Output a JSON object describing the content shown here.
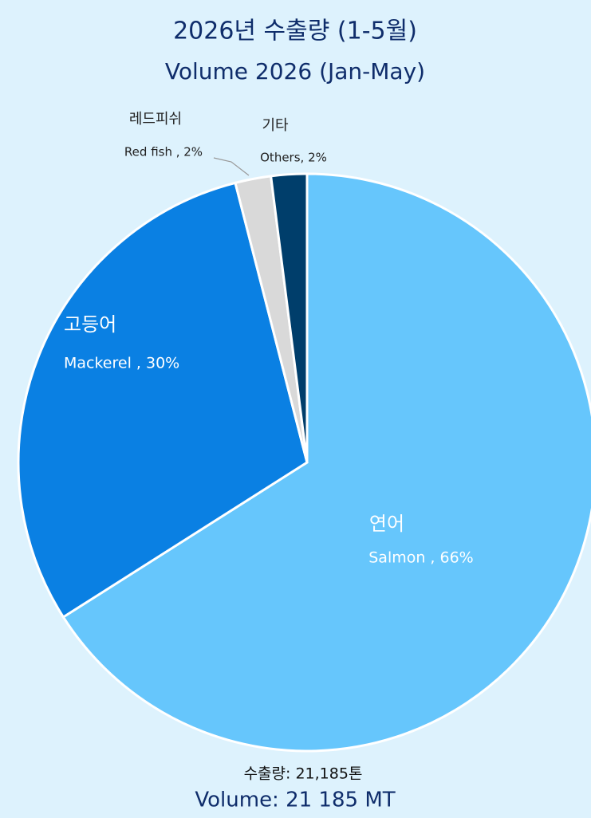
{
  "chart_data": {
    "type": "pie",
    "title": "2026년 수출량 (1-5월)",
    "subtitle": "Volume 2026 (Jan-May)",
    "categories": [
      "연어",
      "고등어",
      "레드피쉬",
      "기타"
    ],
    "values": [
      66,
      30,
      2,
      2
    ],
    "value_labels": [
      "Salmon , 66%",
      "Mackerel , 30%",
      "Red fish , 2%",
      "Others, 2%"
    ],
    "colors": [
      "#66c6fc",
      "#0a80e3",
      "#d9d9d9",
      "#003e6b"
    ],
    "annotations": [
      "수출량: 21,185톤",
      "Volume: 21 185 MT"
    ]
  }
}
